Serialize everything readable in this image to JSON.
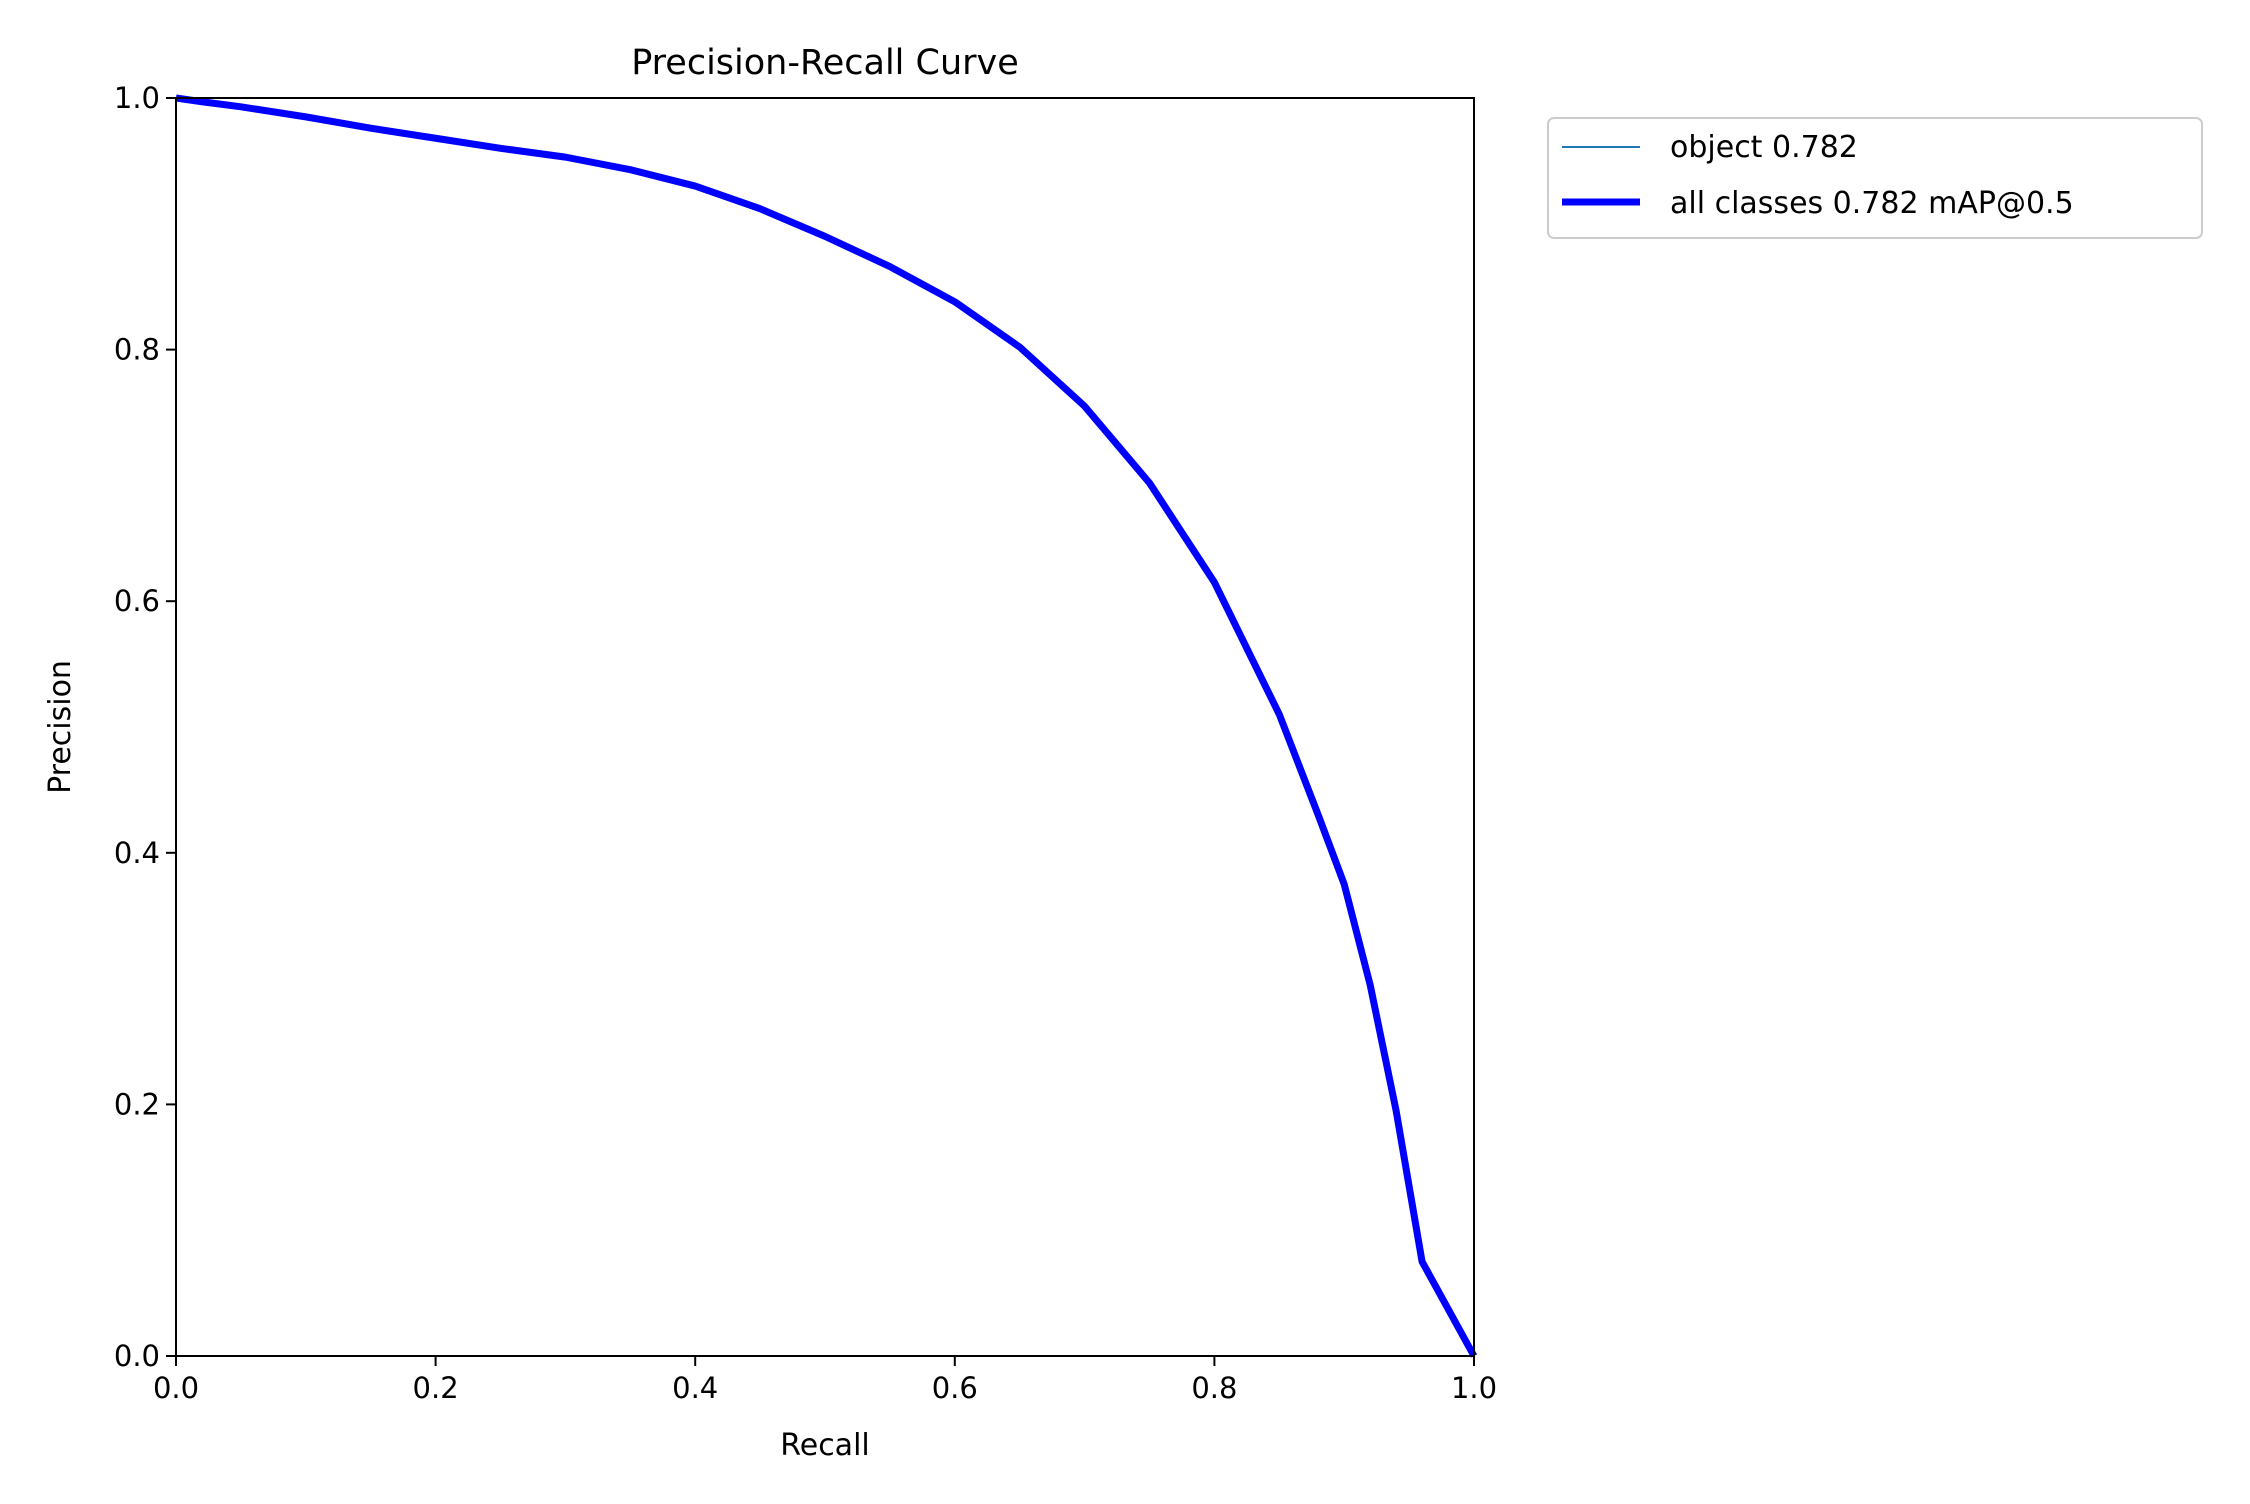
{
  "chart_data": {
    "type": "line",
    "title": "Precision-Recall Curve",
    "xlabel": "Recall",
    "ylabel": "Precision",
    "xlim": [
      0,
      1
    ],
    "ylim": [
      0,
      1
    ],
    "xticks": [
      "0.0",
      "0.2",
      "0.4",
      "0.6",
      "0.8",
      "1.0"
    ],
    "yticks": [
      "0.0",
      "0.2",
      "0.4",
      "0.6",
      "0.8",
      "1.0"
    ],
    "grid": false,
    "legend_position": "outside-top-right",
    "series": [
      {
        "name": "object 0.782",
        "color": "#1f77b4",
        "x": [
          0,
          0.02,
          0.05,
          0.1,
          0.15,
          0.2,
          0.25,
          0.3,
          0.35,
          0.4,
          0.45,
          0.5,
          0.55,
          0.6,
          0.65,
          0.7,
          0.75,
          0.8,
          0.85,
          0.88,
          0.9,
          0.92,
          0.94,
          0.96,
          1.0
        ],
        "y": [
          1.0,
          0.997,
          0.993,
          0.985,
          0.976,
          0.968,
          0.96,
          0.953,
          0.943,
          0.93,
          0.912,
          0.89,
          0.866,
          0.838,
          0.802,
          0.755,
          0.694,
          0.615,
          0.51,
          0.43,
          0.375,
          0.295,
          0.195,
          0.075,
          0.0
        ]
      },
      {
        "name": "all classes 0.782 mAP@0.5",
        "color": "#0000ff",
        "x": [
          0,
          0.02,
          0.05,
          0.1,
          0.15,
          0.2,
          0.25,
          0.3,
          0.35,
          0.4,
          0.45,
          0.5,
          0.55,
          0.6,
          0.65,
          0.7,
          0.75,
          0.8,
          0.85,
          0.88,
          0.9,
          0.92,
          0.94,
          0.96,
          1.0
        ],
        "y": [
          1.0,
          0.997,
          0.993,
          0.985,
          0.976,
          0.968,
          0.96,
          0.953,
          0.943,
          0.93,
          0.912,
          0.89,
          0.866,
          0.838,
          0.802,
          0.755,
          0.694,
          0.615,
          0.51,
          0.43,
          0.375,
          0.295,
          0.195,
          0.075,
          0.0
        ]
      }
    ]
  }
}
